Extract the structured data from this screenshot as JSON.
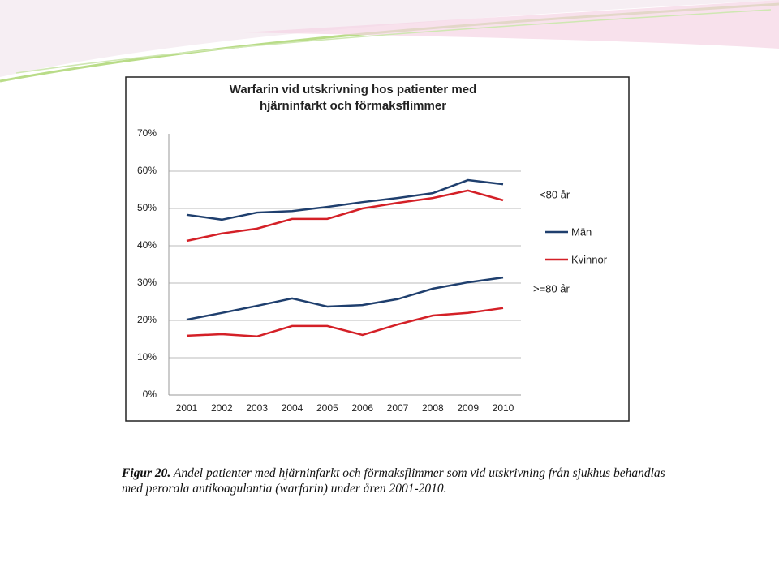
{
  "chart_data": {
    "type": "line",
    "title_lines": [
      "Warfarin vid utskrivning hos patienter med",
      "hjärninfarkt och förmaksflimmer"
    ],
    "categories": [
      "2001",
      "2002",
      "2003",
      "2004",
      "2005",
      "2006",
      "2007",
      "2008",
      "2009",
      "2010"
    ],
    "series_names": [
      {
        "name": "Män",
        "color": "#1f3f6e"
      },
      {
        "name": "Kvinnor",
        "color": "#d42027"
      }
    ],
    "groups": [
      {
        "label": "<80 år",
        "values": [
          [
            48.3,
            47.0,
            48.9,
            49.3,
            50.4,
            51.7,
            52.8,
            54.1,
            57.6,
            56.5
          ],
          [
            41.3,
            43.3,
            44.6,
            47.2,
            47.2,
            50.0,
            51.5,
            52.8,
            54.8,
            52.2
          ]
        ]
      },
      {
        "label": ">=80 år",
        "values": [
          [
            20.2,
            22.0,
            23.9,
            25.9,
            23.7,
            24.1,
            25.7,
            28.5,
            30.2,
            31.5
          ],
          [
            15.9,
            16.3,
            15.7,
            18.5,
            18.5,
            16.1,
            18.9,
            21.3,
            22.0,
            23.3
          ]
        ]
      }
    ],
    "ylim": [
      0,
      70
    ],
    "yticks": [
      {
        "value": 0,
        "label": "0%"
      },
      {
        "value": 10,
        "label": "10%"
      },
      {
        "value": 20,
        "label": "20%"
      },
      {
        "value": 30,
        "label": "30%"
      },
      {
        "value": 40,
        "label": "40%"
      },
      {
        "value": 50,
        "label": "50%"
      },
      {
        "value": 60,
        "label": "60%"
      },
      {
        "value": 70,
        "label": "70%"
      }
    ],
    "grid": true
  },
  "caption": {
    "label": "Figur 20.",
    "text": "Andel patienter med hjärninfarkt och förmaksflimmer som vid utskrivning från sjukhus behandlas med perorala antikoagulantia (warfarin) under åren 2001-2010."
  }
}
